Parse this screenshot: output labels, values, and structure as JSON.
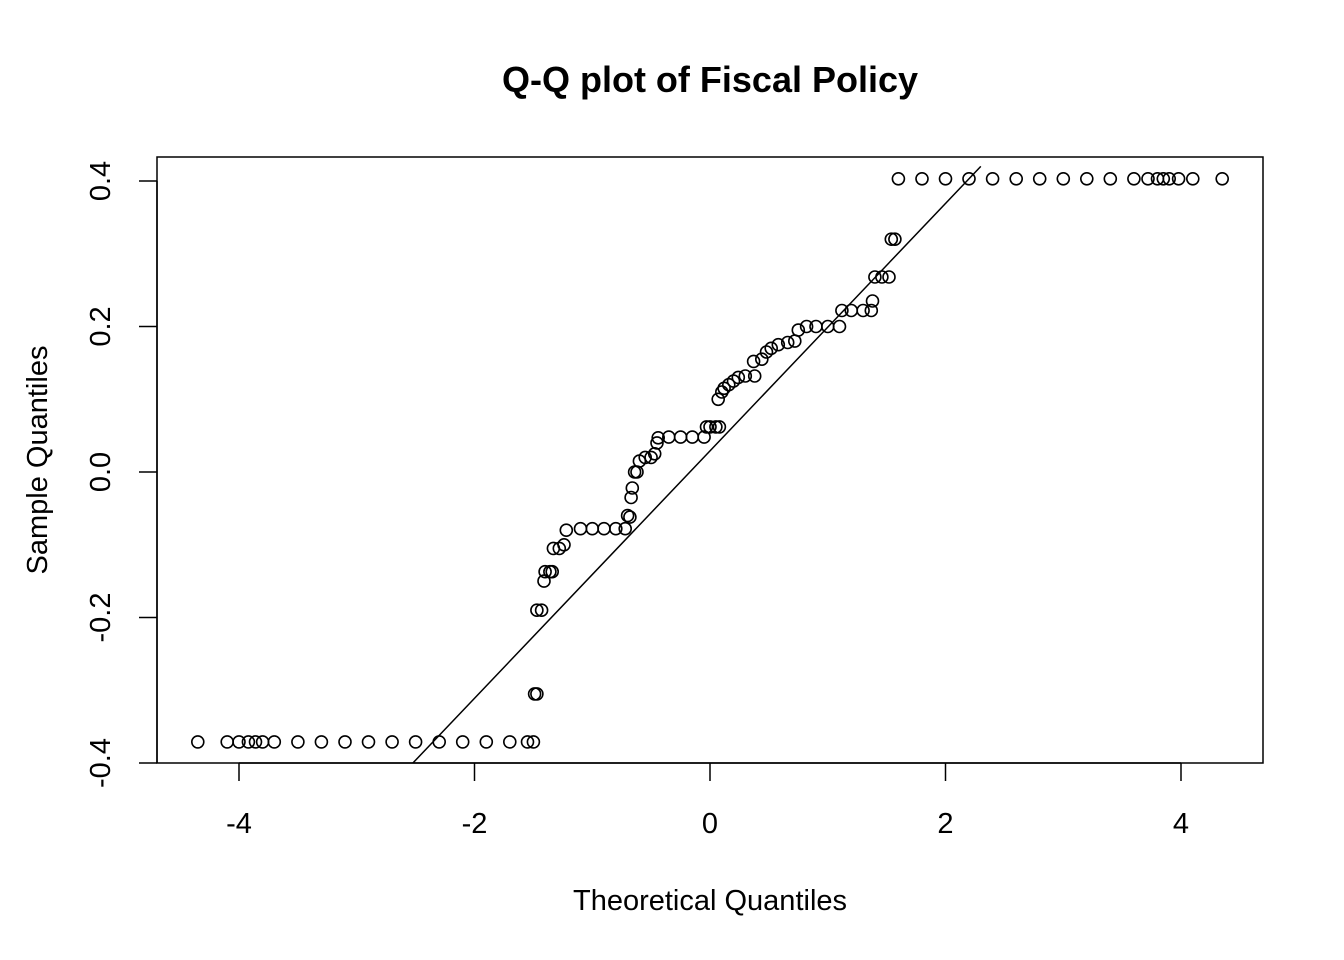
{
  "chart_data": {
    "type": "scatter",
    "title": "Q-Q plot of Fiscal Policy",
    "xlabel": "Theoretical Quantiles",
    "ylabel": "Sample Quantiles",
    "xlim": [
      -4.6,
      4.6
    ],
    "ylim": [
      -0.4,
      0.4
    ],
    "x_ticks": [
      -4,
      -2,
      0,
      2,
      4
    ],
    "x_tick_labels": [
      "-4",
      "-2",
      "0",
      "2",
      "4"
    ],
    "y_ticks": [
      -0.4,
      -0.2,
      0.0,
      0.2,
      0.4
    ],
    "y_tick_labels": [
      "-0.4",
      "-0.2",
      "0.0",
      "0.2",
      "0.4"
    ],
    "grid": false,
    "legend": "none",
    "reference_line": {
      "intercept": 0.029,
      "slope": 0.17
    },
    "points": [
      [
        -4.35,
        -0.371
      ],
      [
        -4.1,
        -0.371
      ],
      [
        -4.0,
        -0.371
      ],
      [
        -3.92,
        -0.371
      ],
      [
        -3.86,
        -0.371
      ],
      [
        -3.8,
        -0.371
      ],
      [
        -3.7,
        -0.371
      ],
      [
        -3.5,
        -0.371
      ],
      [
        -3.3,
        -0.371
      ],
      [
        -3.1,
        -0.371
      ],
      [
        -2.9,
        -0.371
      ],
      [
        -2.7,
        -0.371
      ],
      [
        -2.5,
        -0.371
      ],
      [
        -2.3,
        -0.371
      ],
      [
        -2.1,
        -0.371
      ],
      [
        -1.9,
        -0.371
      ],
      [
        -1.7,
        -0.371
      ],
      [
        -1.55,
        -0.371
      ],
      [
        -1.5,
        -0.371
      ],
      [
        -1.49,
        -0.305
      ],
      [
        -1.47,
        -0.305
      ],
      [
        -1.47,
        -0.19
      ],
      [
        -1.43,
        -0.19
      ],
      [
        -1.41,
        -0.15
      ],
      [
        -1.4,
        -0.137
      ],
      [
        -1.36,
        -0.137
      ],
      [
        -1.34,
        -0.137
      ],
      [
        -1.33,
        -0.105
      ],
      [
        -1.28,
        -0.105
      ],
      [
        -1.24,
        -0.1
      ],
      [
        -1.22,
        -0.08
      ],
      [
        -1.1,
        -0.078
      ],
      [
        -1.0,
        -0.078
      ],
      [
        -0.9,
        -0.078
      ],
      [
        -0.8,
        -0.078
      ],
      [
        -0.72,
        -0.078
      ],
      [
        -0.7,
        -0.06
      ],
      [
        -0.68,
        -0.062
      ],
      [
        -0.67,
        -0.035
      ],
      [
        -0.66,
        -0.022
      ],
      [
        -0.64,
        0.0
      ],
      [
        -0.62,
        0.0
      ],
      [
        -0.6,
        0.015
      ],
      [
        -0.55,
        0.02
      ],
      [
        -0.5,
        0.02
      ],
      [
        -0.47,
        0.025
      ],
      [
        -0.45,
        0.04
      ],
      [
        -0.44,
        0.047
      ],
      [
        -0.35,
        0.048
      ],
      [
        -0.25,
        0.048
      ],
      [
        -0.15,
        0.048
      ],
      [
        -0.05,
        0.048
      ],
      [
        -0.03,
        0.062
      ],
      [
        0.0,
        0.062
      ],
      [
        0.05,
        0.062
      ],
      [
        0.08,
        0.062
      ],
      [
        0.07,
        0.1
      ],
      [
        0.1,
        0.11
      ],
      [
        0.12,
        0.115
      ],
      [
        0.16,
        0.12
      ],
      [
        0.2,
        0.125
      ],
      [
        0.24,
        0.13
      ],
      [
        0.3,
        0.132
      ],
      [
        0.38,
        0.132
      ],
      [
        0.37,
        0.152
      ],
      [
        0.44,
        0.155
      ],
      [
        0.48,
        0.165
      ],
      [
        0.52,
        0.17
      ],
      [
        0.58,
        0.175
      ],
      [
        0.66,
        0.178
      ],
      [
        0.72,
        0.18
      ],
      [
        0.75,
        0.195
      ],
      [
        0.82,
        0.2
      ],
      [
        0.9,
        0.2
      ],
      [
        1.0,
        0.2
      ],
      [
        1.1,
        0.2
      ],
      [
        1.12,
        0.222
      ],
      [
        1.2,
        0.222
      ],
      [
        1.3,
        0.222
      ],
      [
        1.37,
        0.222
      ],
      [
        1.38,
        0.235
      ],
      [
        1.4,
        0.268
      ],
      [
        1.46,
        0.268
      ],
      [
        1.52,
        0.268
      ],
      [
        1.54,
        0.32
      ],
      [
        1.57,
        0.32
      ],
      [
        1.6,
        0.403
      ],
      [
        1.8,
        0.403
      ],
      [
        2.0,
        0.403
      ],
      [
        2.2,
        0.403
      ],
      [
        2.4,
        0.403
      ],
      [
        2.6,
        0.403
      ],
      [
        2.8,
        0.403
      ],
      [
        3.0,
        0.403
      ],
      [
        3.2,
        0.403
      ],
      [
        3.4,
        0.403
      ],
      [
        3.6,
        0.403
      ],
      [
        3.72,
        0.403
      ],
      [
        3.8,
        0.403
      ],
      [
        3.85,
        0.403
      ],
      [
        3.9,
        0.403
      ],
      [
        3.98,
        0.403
      ],
      [
        4.1,
        0.403
      ],
      [
        4.35,
        0.403
      ]
    ]
  }
}
